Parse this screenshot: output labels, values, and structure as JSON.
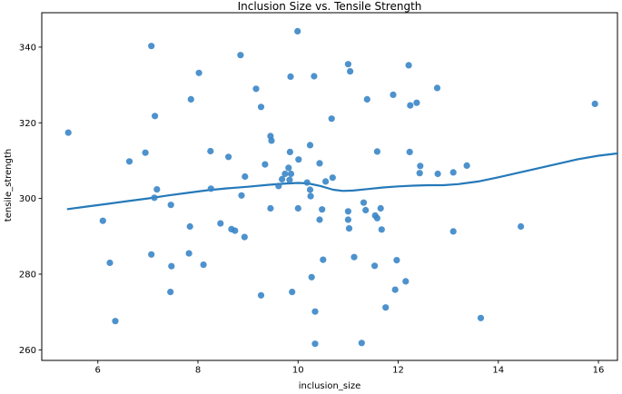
{
  "chart_data": {
    "type": "scatter",
    "title": "Inclusion Size vs. Tensile Strength",
    "xlabel": "inclusion_size",
    "ylabel": "tensile_strength",
    "x_ticks": [
      6,
      8,
      10,
      12,
      14,
      16
    ],
    "y_ticks": [
      260,
      280,
      300,
      320,
      340
    ],
    "xlim": [
      4.88,
      16.38
    ],
    "ylim": [
      257.2,
      349.1
    ],
    "grid": false,
    "legend_position": "none",
    "marker_color": "#3a86c8",
    "trend_color": "#2579b9",
    "frame_color": "#000000",
    "points": [
      [
        5.41,
        317.4
      ],
      [
        6.1,
        294.1
      ],
      [
        6.24,
        283.0
      ],
      [
        6.35,
        267.6
      ],
      [
        6.63,
        309.8
      ],
      [
        6.95,
        312.1
      ],
      [
        7.07,
        340.3
      ],
      [
        7.14,
        321.8
      ],
      [
        7.07,
        285.2
      ],
      [
        7.18,
        302.4
      ],
      [
        7.13,
        300.2
      ],
      [
        7.46,
        298.3
      ],
      [
        7.47,
        282.1
      ],
      [
        7.45,
        275.3
      ],
      [
        7.82,
        285.5
      ],
      [
        7.84,
        292.6
      ],
      [
        7.86,
        326.2
      ],
      [
        8.02,
        333.2
      ],
      [
        8.11,
        282.5
      ],
      [
        8.25,
        312.5
      ],
      [
        8.61,
        311.0
      ],
      [
        8.26,
        302.6
      ],
      [
        8.45,
        293.4
      ],
      [
        8.67,
        291.9
      ],
      [
        8.74,
        291.5
      ],
      [
        8.85,
        337.9
      ],
      [
        8.93,
        289.8
      ],
      [
        8.87,
        300.8
      ],
      [
        8.94,
        305.8
      ],
      [
        9.16,
        329.0
      ],
      [
        9.26,
        324.2
      ],
      [
        9.26,
        274.4
      ],
      [
        9.34,
        309.0
      ],
      [
        9.45,
        316.5
      ],
      [
        9.47,
        315.3
      ],
      [
        9.45,
        297.4
      ],
      [
        9.61,
        303.3
      ],
      [
        9.68,
        305.1
      ],
      [
        9.74,
        306.5
      ],
      [
        9.81,
        308.1
      ],
      [
        9.83,
        304.9
      ],
      [
        9.84,
        312.3
      ],
      [
        9.86,
        306.5
      ],
      [
        9.85,
        332.2
      ],
      [
        9.88,
        275.3
      ],
      [
        9.99,
        344.2
      ],
      [
        10.0,
        297.4
      ],
      [
        10.01,
        310.3
      ],
      [
        10.18,
        304.2
      ],
      [
        10.24,
        302.3
      ],
      [
        10.25,
        300.6
      ],
      [
        10.24,
        314.1
      ],
      [
        10.32,
        332.3
      ],
      [
        10.27,
        279.2
      ],
      [
        10.34,
        270.1
      ],
      [
        10.34,
        261.6
      ],
      [
        10.43,
        294.4
      ],
      [
        10.43,
        309.3
      ],
      [
        10.48,
        297.1
      ],
      [
        10.5,
        283.8
      ],
      [
        10.55,
        304.5
      ],
      [
        10.67,
        321.1
      ],
      [
        10.69,
        305.5
      ],
      [
        11.0,
        335.5
      ],
      [
        11.04,
        333.6
      ],
      [
        11.0,
        296.6
      ],
      [
        11.0,
        294.4
      ],
      [
        11.02,
        292.1
      ],
      [
        11.12,
        284.5
      ],
      [
        11.27,
        261.8
      ],
      [
        11.31,
        298.9
      ],
      [
        11.35,
        296.9
      ],
      [
        11.38,
        326.2
      ],
      [
        11.53,
        282.2
      ],
      [
        11.54,
        295.5
      ],
      [
        11.58,
        294.8
      ],
      [
        11.58,
        312.4
      ],
      [
        11.65,
        297.4
      ],
      [
        11.67,
        291.8
      ],
      [
        11.75,
        271.2
      ],
      [
        11.9,
        327.4
      ],
      [
        11.94,
        275.9
      ],
      [
        11.97,
        283.7
      ],
      [
        12.15,
        278.1
      ],
      [
        12.21,
        335.2
      ],
      [
        12.24,
        324.6
      ],
      [
        12.37,
        325.3
      ],
      [
        12.23,
        312.3
      ],
      [
        12.44,
        308.6
      ],
      [
        12.43,
        306.7
      ],
      [
        12.78,
        329.2
      ],
      [
        12.79,
        306.5
      ],
      [
        13.1,
        306.9
      ],
      [
        13.37,
        308.7
      ],
      [
        13.1,
        291.3
      ],
      [
        13.65,
        268.4
      ],
      [
        14.45,
        292.6
      ],
      [
        15.93,
        325.0
      ]
    ],
    "trend_line": [
      [
        5.4,
        297.2
      ],
      [
        5.8,
        297.9
      ],
      [
        6.2,
        298.6
      ],
      [
        6.6,
        299.3
      ],
      [
        7.0,
        300.0
      ],
      [
        7.4,
        300.8
      ],
      [
        7.8,
        301.5
      ],
      [
        8.2,
        302.2
      ],
      [
        8.6,
        302.7
      ],
      [
        9.0,
        303.1
      ],
      [
        9.4,
        303.6
      ],
      [
        9.7,
        303.9
      ],
      [
        10.0,
        304.1
      ],
      [
        10.2,
        304.0
      ],
      [
        10.45,
        303.3
      ],
      [
        10.7,
        302.3
      ],
      [
        10.9,
        302.0
      ],
      [
        11.1,
        302.1
      ],
      [
        11.4,
        302.5
      ],
      [
        11.7,
        302.9
      ],
      [
        12.0,
        303.2
      ],
      [
        12.3,
        303.4
      ],
      [
        12.6,
        303.5
      ],
      [
        12.9,
        303.5
      ],
      [
        13.2,
        303.8
      ],
      [
        13.6,
        304.5
      ],
      [
        14.0,
        305.6
      ],
      [
        14.4,
        306.8
      ],
      [
        14.8,
        308.0
      ],
      [
        15.2,
        309.2
      ],
      [
        15.6,
        310.4
      ],
      [
        16.0,
        311.3
      ],
      [
        16.38,
        311.9
      ]
    ]
  }
}
